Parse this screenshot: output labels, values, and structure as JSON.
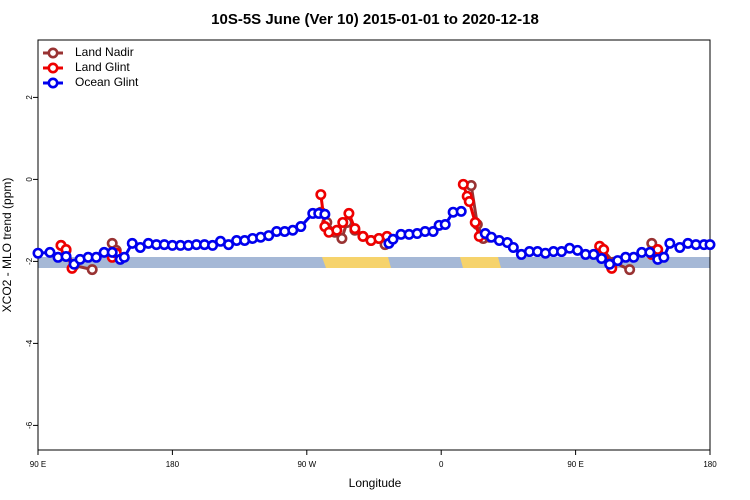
{
  "chart_data": {
    "type": "line",
    "title": "10S-5S June (Ver 10)   2015-01-01 to 2020-12-18",
    "xlabel": "Longitude",
    "ylabel": "XCO2 - MLO trend (ppm)",
    "xlim": [
      90,
      540
    ],
    "ylim": [
      -6.6,
      3.4
    ],
    "xticks": [
      {
        "value": 90,
        "label": "90 E"
      },
      {
        "value": 180,
        "label": "180"
      },
      {
        "value": 270,
        "label": "90 W"
      },
      {
        "value": 360,
        "label": "0"
      },
      {
        "value": 450,
        "label": "90 E"
      },
      {
        "value": 540,
        "label": "180"
      }
    ],
    "yticks": [
      -6,
      -4,
      -2,
      0,
      2
    ],
    "legend": "top-left",
    "series": [
      {
        "name": "Land Nadir",
        "color": "#993333",
        "x": [
          105.4,
          108.8,
          114.2,
          126.3,
          null,
          139.7,
          142.4,
          145.1,
          null,
          279.4,
          283.4,
          288.8,
          293.5,
          296.9,
          302.2,
          307.6,
          313,
          318.3,
          322.4,
          null,
          380.1,
          384.2,
          388.2,
          392.2,
          null,
          467.4,
          475.5,
          486.2,
          null,
          501,
          505
        ],
        "values": [
          -1.61,
          -1.73,
          -2.1,
          -2.2,
          null,
          -1.56,
          -1.73,
          -1.93,
          null,
          -0.8,
          -1.05,
          -1.29,
          -1.44,
          -1.05,
          -1.24,
          -1.39,
          -1.49,
          -1.44,
          -1.59,
          null,
          -0.15,
          -1.1,
          -1.44,
          -1.41,
          null,
          -1.68,
          -2.02,
          -2.2,
          null,
          -1.56,
          -1.8
        ]
      },
      {
        "name": "Land Glint",
        "color": "#ee0000",
        "x": [
          105.4,
          108.8,
          112.8,
          null,
          139.7,
          142.4,
          null,
          279.4,
          282.1,
          284.8,
          290.1,
          294.1,
          298.2,
          302.2,
          307.6,
          313,
          318.3,
          323.7,
          null,
          374.8,
          377.4,
          378.8,
          382.8,
          385.5,
          null,
          466.1,
          468.8,
          474.2,
          null,
          501,
          505
        ],
        "values": [
          -1.61,
          -1.71,
          -2.17,
          null,
          -1.9,
          -1.8,
          null,
          -0.37,
          -1.15,
          -1.29,
          -1.24,
          -1.05,
          -0.83,
          -1.2,
          -1.39,
          -1.49,
          -1.44,
          -1.39,
          null,
          -0.12,
          -0.41,
          -0.54,
          -1.05,
          -1.39,
          null,
          -1.63,
          -1.71,
          -2.17,
          null,
          -1.83,
          -1.71
        ]
      },
      {
        "name": "Ocean Glint",
        "color": "#0000ee",
        "x": [
          90,
          98,
          103.4,
          108.8,
          114.2,
          118.2,
          123.6,
          129,
          134.3,
          139.7,
          145.1,
          147.8,
          153.1,
          158.5,
          163.9,
          169.3,
          174.6,
          180,
          185.4,
          190.7,
          196.1,
          201.5,
          206.9,
          212.2,
          217.6,
          223,
          228.4,
          233.7,
          239.1,
          244.5,
          249.8,
          255.2,
          260.6,
          266,
          274,
          278,
          282.1,
          null,
          325,
          327.7,
          333.1,
          338.5,
          343.9,
          349.2,
          354.6,
          358.6,
          362.7,
          368,
          373.4,
          null,
          389.5,
          393.6,
          398.9,
          404.3,
          408.3,
          413.7,
          419.1,
          424.5,
          429.8,
          435.2,
          440.6,
          446,
          451.3,
          456.7,
          462.1,
          467.4,
          472.8,
          478.2,
          483.5,
          488.9,
          494.3,
          499.7,
          505,
          509.1,
          513.1,
          519.8,
          525.2,
          530.6,
          536,
          540
        ],
        "values": [
          -1.8,
          -1.78,
          -1.9,
          -1.88,
          -2.07,
          -1.95,
          -1.9,
          -1.9,
          -1.78,
          -1.78,
          -1.95,
          -1.9,
          -1.56,
          -1.66,
          -1.56,
          -1.59,
          -1.59,
          -1.61,
          -1.61,
          -1.61,
          -1.59,
          -1.59,
          -1.61,
          -1.51,
          -1.59,
          -1.49,
          -1.49,
          -1.44,
          -1.41,
          -1.37,
          -1.27,
          -1.27,
          -1.24,
          -1.15,
          -0.83,
          -0.83,
          -0.85,
          null,
          -1.56,
          -1.46,
          -1.34,
          -1.34,
          -1.32,
          -1.27,
          -1.27,
          -1.12,
          -1.1,
          -0.8,
          -0.78,
          null,
          -1.32,
          -1.41,
          -1.49,
          -1.54,
          -1.66,
          -1.83,
          -1.76,
          -1.76,
          -1.8,
          -1.76,
          -1.76,
          -1.68,
          -1.73,
          -1.83,
          -1.83,
          -1.93,
          -2.07,
          -1.98,
          -1.9,
          -1.9,
          -1.78,
          -1.78,
          -1.95,
          -1.9,
          -1.56,
          -1.66,
          -1.56,
          -1.59,
          -1.59,
          -1.59
        ]
      }
    ]
  }
}
